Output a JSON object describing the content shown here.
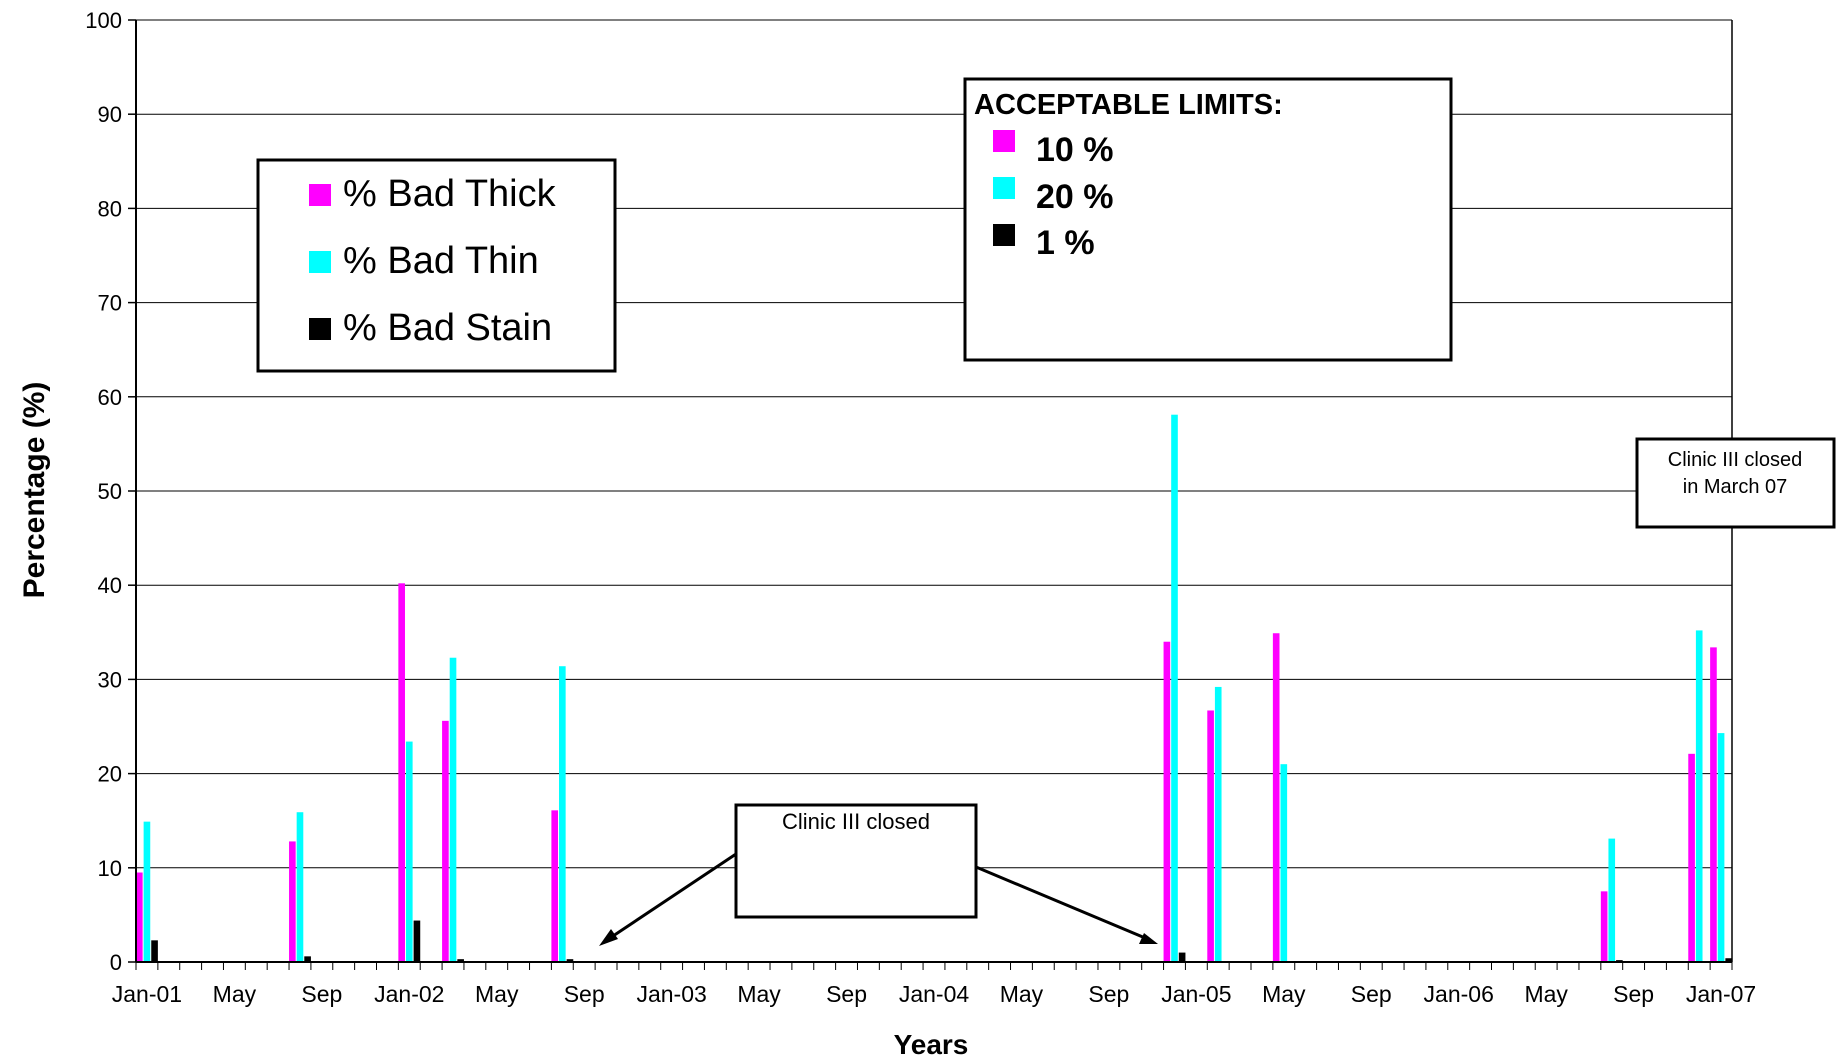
{
  "chart_data": {
    "type": "bar",
    "x_type": "date",
    "ylabel": "Percentage (%)",
    "xlabel": "Years",
    "ylim": [
      0,
      100
    ],
    "yticks": [
      0,
      10,
      20,
      30,
      40,
      50,
      60,
      70,
      80,
      90,
      100
    ],
    "xlim": [
      "2001-01-01",
      "2007-02-01"
    ],
    "xtick_labels": [
      "Jan-01",
      "May",
      "Sep",
      "Jan-02",
      "May",
      "Sep",
      "Jan-03",
      "May",
      "Sep",
      "Jan-04",
      "May",
      "Sep",
      "Jan-05",
      "May",
      "Sep",
      "Jan-06",
      "May",
      "Sep",
      "Jan-07"
    ],
    "grid": true,
    "colors": {
      "thick": "#FF00FF",
      "thin": "#00FFFF",
      "stain": "#000000",
      "grid": "#000000"
    },
    "legend": {
      "placement": "upper-left",
      "entries": [
        "% Bad Thick",
        "% Bad Thin",
        "% Bad Stain"
      ]
    },
    "limits_box": {
      "title": "ACCEPTABLE LIMITS:",
      "entries": [
        "10 %",
        "20 %",
        "1 %"
      ]
    },
    "annotations": {
      "closed": "Clinic III closed",
      "closed_march_line1": "Clinic III closed",
      "closed_march_line2": "in March 07"
    },
    "series": [
      {
        "name": "% Bad Thick",
        "points": [
          {
            "date": "2001-01",
            "value": 9.5
          },
          {
            "date": "2001-08",
            "value": 12.8
          },
          {
            "date": "2002-01",
            "value": 40.2
          },
          {
            "date": "2002-03",
            "value": 25.6
          },
          {
            "date": "2002-08",
            "value": 16.1
          },
          {
            "date": "2004-12",
            "value": 34.0
          },
          {
            "date": "2005-02",
            "value": 26.7
          },
          {
            "date": "2005-05",
            "value": 34.9
          },
          {
            "date": "2006-08",
            "value": 7.5
          },
          {
            "date": "2006-12",
            "value": 22.1
          },
          {
            "date": "2007-01",
            "value": 33.4
          }
        ]
      },
      {
        "name": "% Bad Thin",
        "points": [
          {
            "date": "2001-01",
            "value": 14.9
          },
          {
            "date": "2001-08",
            "value": 15.9
          },
          {
            "date": "2002-01",
            "value": 23.4
          },
          {
            "date": "2002-03",
            "value": 32.3
          },
          {
            "date": "2002-08",
            "value": 31.4
          },
          {
            "date": "2004-12",
            "value": 58.1
          },
          {
            "date": "2005-02",
            "value": 29.2
          },
          {
            "date": "2005-05",
            "value": 21.0
          },
          {
            "date": "2006-08",
            "value": 13.1
          },
          {
            "date": "2006-12",
            "value": 35.2
          },
          {
            "date": "2007-01",
            "value": 24.3
          }
        ]
      },
      {
        "name": "% Bad Stain",
        "points": [
          {
            "date": "2001-01",
            "value": 2.3
          },
          {
            "date": "2001-08",
            "value": 0.6
          },
          {
            "date": "2002-01",
            "value": 4.4
          },
          {
            "date": "2002-03",
            "value": 0.3
          },
          {
            "date": "2002-08",
            "value": 0.3
          },
          {
            "date": "2004-12",
            "value": 1.0
          },
          {
            "date": "2005-02",
            "value": 0.0
          },
          {
            "date": "2005-05",
            "value": 0.0
          },
          {
            "date": "2006-08",
            "value": 0.2
          },
          {
            "date": "2006-12",
            "value": 0.0
          },
          {
            "date": "2007-01",
            "value": 0.4
          }
        ]
      }
    ]
  }
}
